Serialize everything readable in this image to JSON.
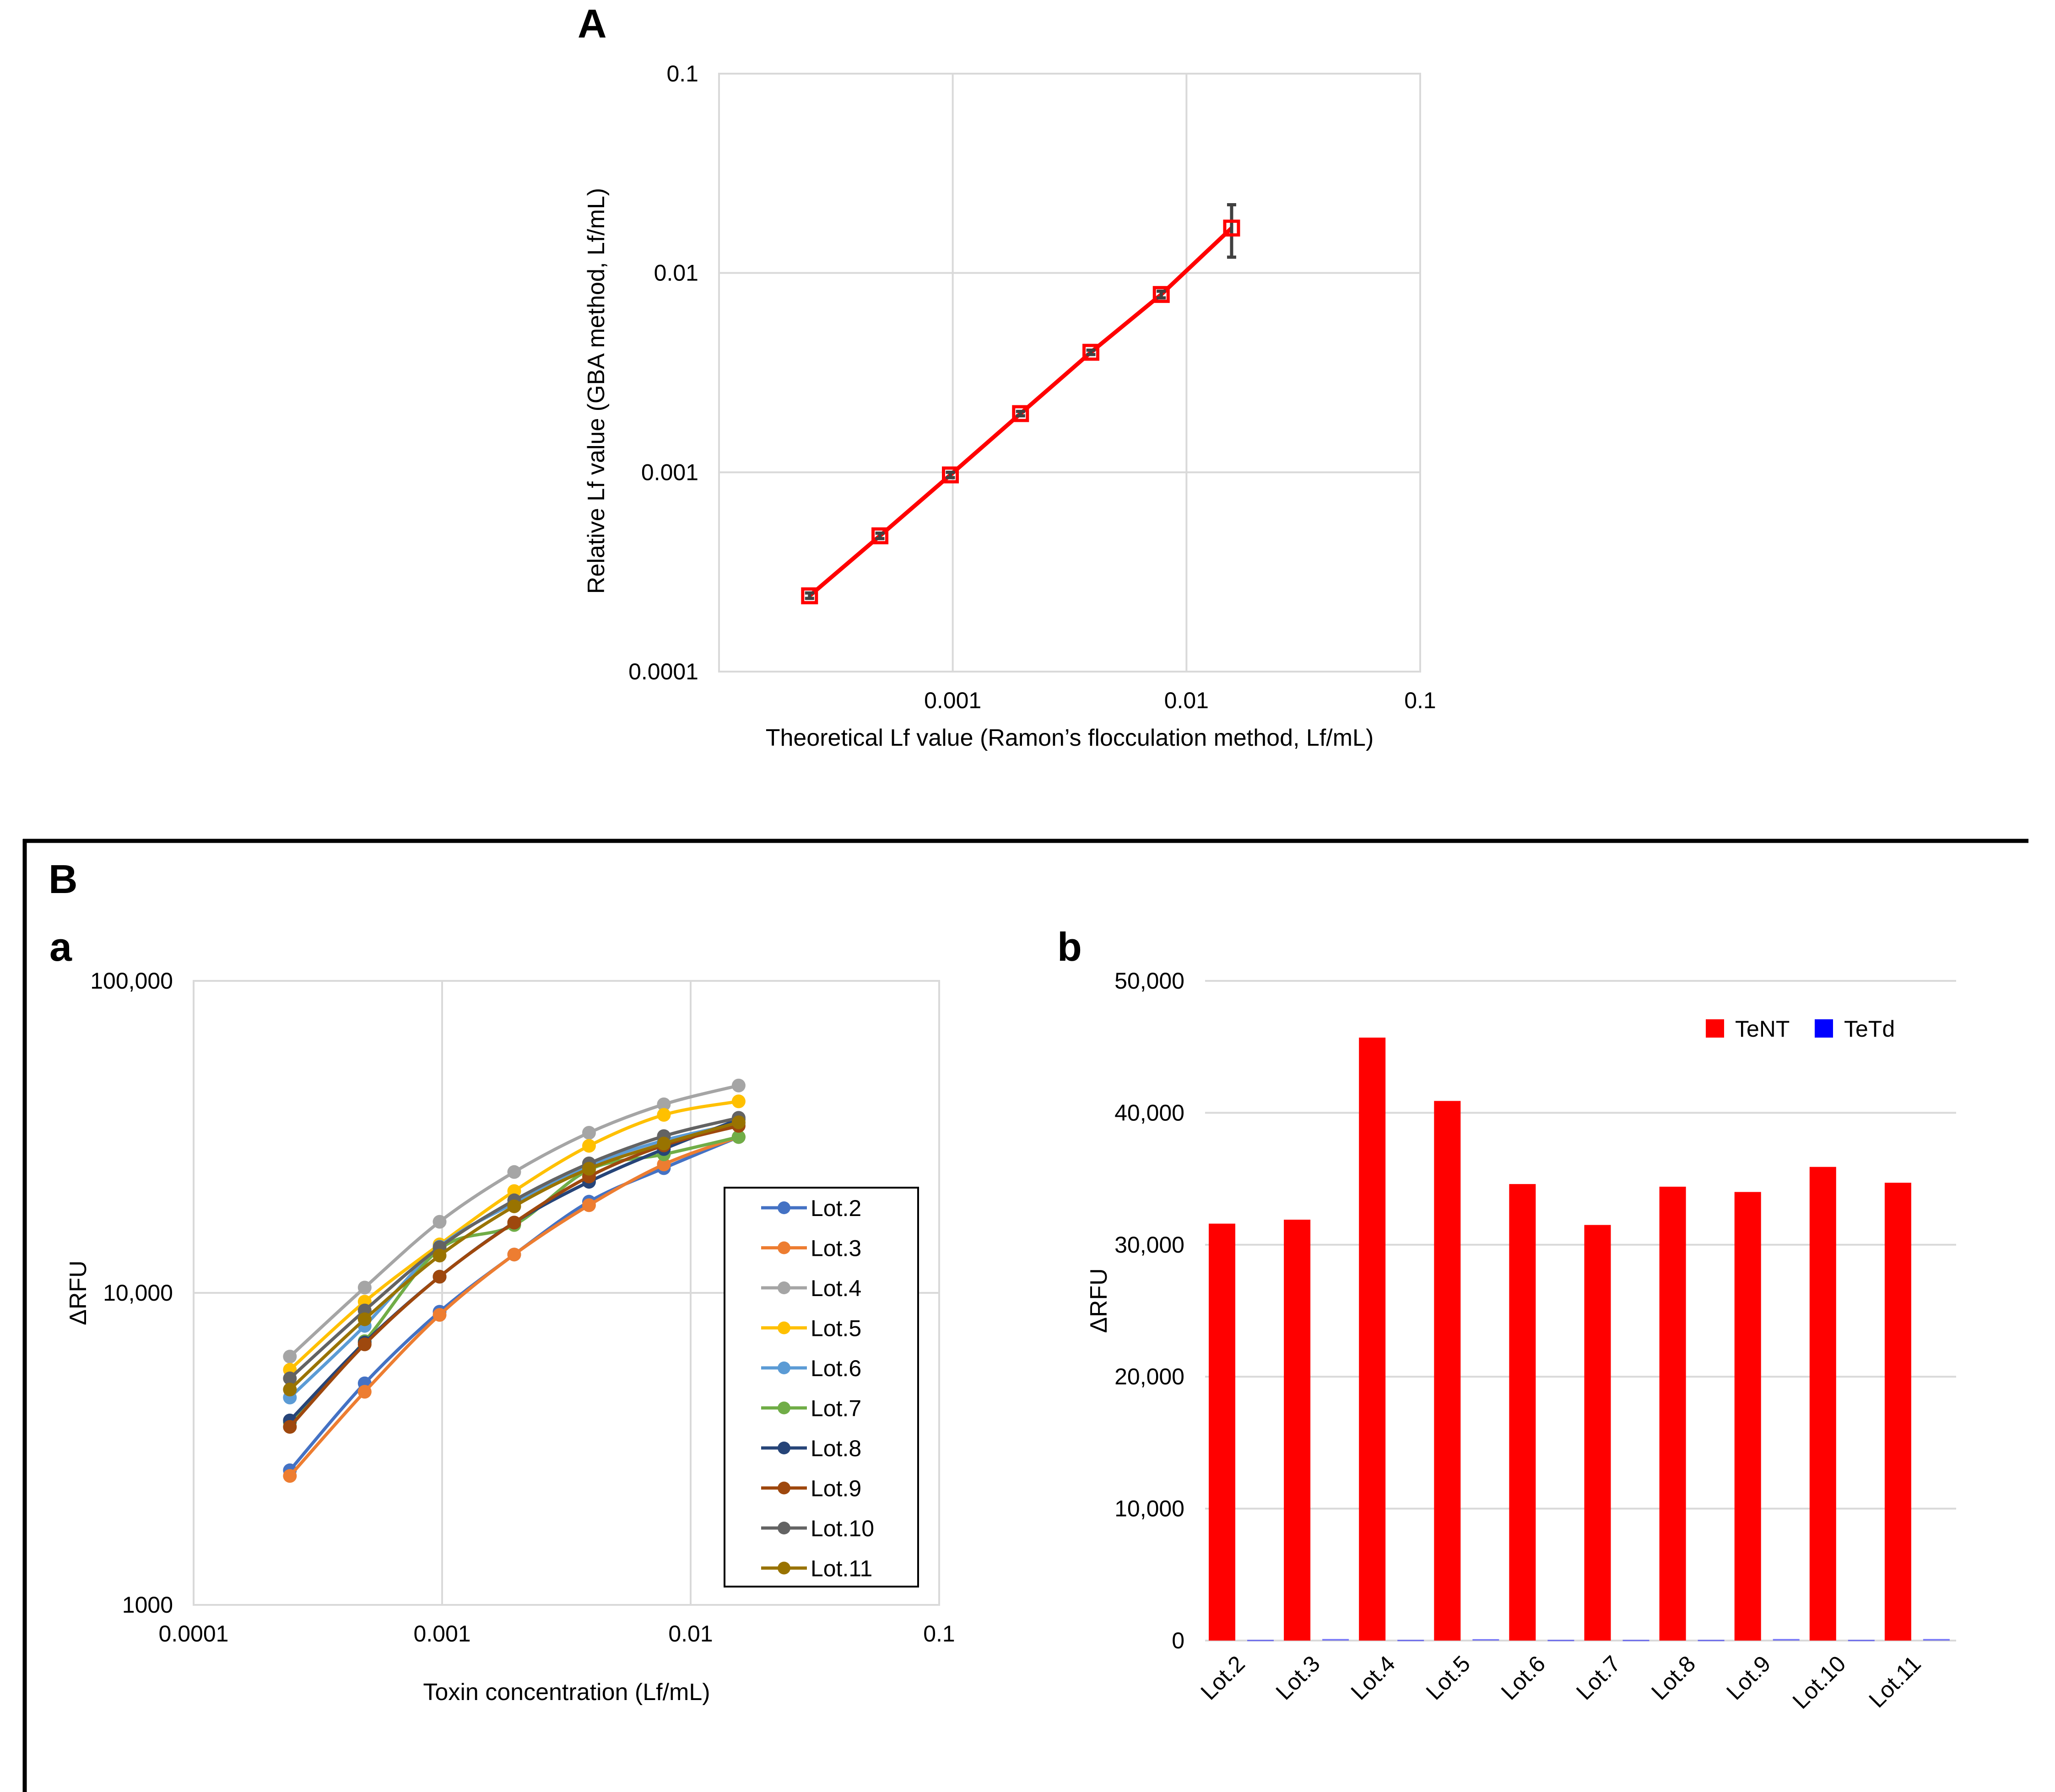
{
  "panel_labels": {
    "A": "A",
    "B": "B",
    "a": "a",
    "b": "b"
  },
  "chart_data": [
    {
      "id": "A",
      "type": "line",
      "title": "",
      "xlabel": "Theoretical Lf value (Ramon’s flocculation method, Lf/mL)",
      "ylabel": "Relative Lf value (GBA method, Lf/mL)",
      "xscale": "log",
      "yscale": "log",
      "xlim": [
        0.0001,
        0.1
      ],
      "ylim": [
        0.0001,
        0.1
      ],
      "xticks": [
        "0.001",
        "0.01",
        "0.1"
      ],
      "yticks": [
        "0.0001",
        "0.001",
        "0.01",
        "0.1"
      ],
      "grid": true,
      "color": "#FF0000",
      "errorbar_color": "#404040",
      "x": [
        0.000244,
        0.000488,
        0.000977,
        0.00195,
        0.0039,
        0.0078,
        0.0156
      ],
      "y": [
        0.00024,
        0.00048,
        0.00097,
        0.00197,
        0.004,
        0.0078,
        0.0168
      ],
      "yerr_low": [
        0.000233,
        0.000465,
        0.00094,
        0.00192,
        0.0039,
        0.0075,
        0.012
      ],
      "yerr_high": [
        0.000248,
        0.000495,
        0.001,
        0.00202,
        0.0041,
        0.0081,
        0.022
      ]
    },
    {
      "id": "Ba",
      "type": "line",
      "xlabel": "Toxin concentration (Lf/mL)",
      "ylabel": "ΔRFU",
      "xscale": "log",
      "yscale": "log",
      "xlim": [
        0.0001,
        0.1
      ],
      "ylim": [
        1000,
        100000
      ],
      "xticks": [
        "0.0001",
        "0.001",
        "0.01",
        "0.1"
      ],
      "yticks": [
        "1000",
        "10,000",
        "100,000"
      ],
      "grid": true,
      "legend": "right",
      "x": [
        0.000244,
        0.000488,
        0.000977,
        0.00195,
        0.0039,
        0.0078,
        0.0156
      ],
      "series": [
        {
          "name": "Lot.2",
          "color": "#4472C4",
          "values": [
            2700,
            5130,
            8700,
            13270,
            19600,
            25100,
            31600
          ]
        },
        {
          "name": "Lot.3",
          "color": "#ED7D31",
          "values": [
            2590,
            4820,
            8500,
            13270,
            19100,
            25800,
            31600
          ]
        },
        {
          "name": "Lot.4",
          "color": "#A5A5A5",
          "values": [
            6250,
            10400,
            16900,
            24400,
            32600,
            40200,
            46200
          ]
        },
        {
          "name": "Lot.5",
          "color": "#FFC000",
          "values": [
            5670,
            9370,
            14300,
            21200,
            29600,
            37200,
            41100
          ]
        },
        {
          "name": "Lot.6",
          "color": "#5B9BD5",
          "values": [
            4620,
            7840,
            14060,
            19400,
            25600,
            30800,
            34900
          ]
        },
        {
          "name": "Lot.7",
          "color": "#70AD47",
          "values": [
            3850,
            7000,
            13800,
            16500,
            24800,
            27800,
            31600
          ]
        },
        {
          "name": "Lot.8",
          "color": "#264478",
          "values": [
            3900,
            6930,
            11270,
            16800,
            22700,
            28900,
            36000
          ]
        },
        {
          "name": "Lot.9",
          "color": "#9E480E",
          "values": [
            3720,
            6840,
            11270,
            16800,
            23600,
            29700,
            34300
          ]
        },
        {
          "name": "Lot.10",
          "color": "#636363",
          "values": [
            5320,
            8780,
            14000,
            19800,
            26000,
            31800,
            36400
          ]
        },
        {
          "name": "Lot.11",
          "color": "#997300",
          "values": [
            4900,
            8230,
            13170,
            18940,
            25000,
            30100,
            35200
          ]
        }
      ]
    },
    {
      "id": "Bb",
      "type": "bar",
      "xlabel": "",
      "ylabel": "ΔRFU",
      "ylim": [
        0,
        50000
      ],
      "yticks": [
        "0",
        "10,000",
        "20,000",
        "30,000",
        "40,000",
        "50,000"
      ],
      "grid": true,
      "legend": "top-right",
      "categories": [
        "Lot.2",
        "Lot.3",
        "Lot.4",
        "Lot.5",
        "Lot.6",
        "Lot.7",
        "Lot.8",
        "Lot.9",
        "Lot.10",
        "Lot.11"
      ],
      "series": [
        {
          "name": "TeNT",
          "color": "#FF0000",
          "values": [
            31600,
            31900,
            45700,
            40900,
            34600,
            31500,
            34400,
            34000,
            35900,
            34700
          ]
        },
        {
          "name": "TeTd",
          "color": "#0000FF",
          "values": [
            60,
            120,
            60,
            110,
            60,
            60,
            60,
            120,
            60,
            120
          ]
        }
      ]
    }
  ]
}
